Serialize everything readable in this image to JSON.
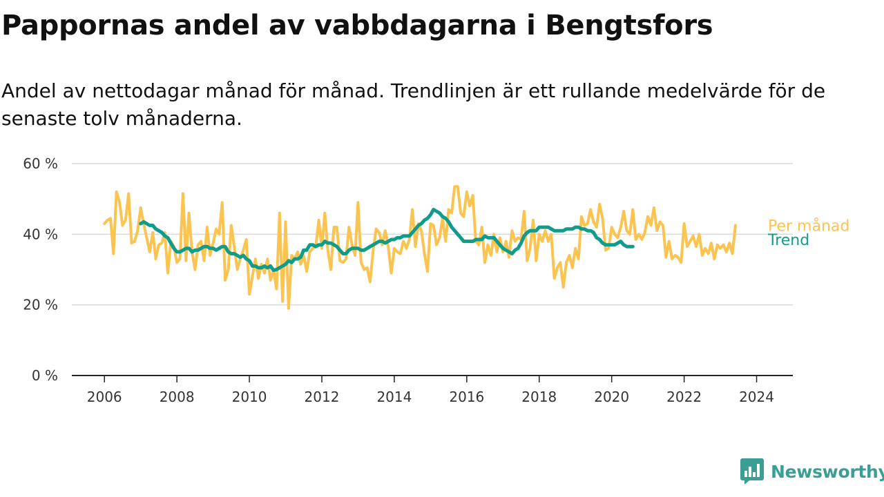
{
  "title": "Pappornas andel av vabbdagarna i Bengtsfors",
  "subtitle": "Andel av nettodagar månad för månad. Trendlinjen är ett rullande medelvärde för de senaste tolv månaderna.",
  "brand": {
    "name": "Newsworthy",
    "icon": "bar-chart-speech-bubble-icon",
    "color": "#3a9e94"
  },
  "chart_data": {
    "type": "line",
    "xlabel": "",
    "ylabel": "",
    "xlim": [
      2005.1,
      2025.0
    ],
    "ylim": [
      0,
      60
    ],
    "x_ticks": [
      2006,
      2008,
      2010,
      2012,
      2014,
      2016,
      2018,
      2020,
      2022,
      2024
    ],
    "x_tick_labels": [
      "2006",
      "2008",
      "2010",
      "2012",
      "2014",
      "2016",
      "2018",
      "2020",
      "2022",
      "2024"
    ],
    "y_ticks": [
      0,
      20,
      40,
      60
    ],
    "y_tick_labels": [
      "0 %",
      "20 %",
      "40 %",
      "60 %"
    ],
    "grid": "horizontal",
    "legend": "direct labels at right end of lines",
    "series": [
      {
        "name": "Per månad",
        "color": "#fbc34f",
        "x_start": 2006.0,
        "x_step": 0.08333,
        "values": [
          43,
          44,
          44.5,
          34.5,
          52,
          49,
          42.5,
          44,
          51.5,
          37.5,
          38,
          41,
          47.5,
          43,
          39,
          35,
          40.5,
          33,
          37,
          37.5,
          40.5,
          29,
          38,
          36.5,
          32,
          33,
          51.5,
          32.5,
          46,
          35,
          30,
          37,
          38,
          32.5,
          42,
          34,
          37.5,
          41.5,
          40,
          49,
          27,
          30,
          42.5,
          36.5,
          30,
          33,
          35.5,
          38.5,
          23,
          28,
          33,
          27.5,
          31.5,
          29,
          33,
          27,
          30,
          24.5,
          46,
          21,
          43.5,
          19,
          34,
          33,
          35,
          31.5,
          34,
          29.5,
          35,
          36,
          36.5,
          44,
          36,
          46,
          35.5,
          30,
          42,
          42,
          32.5,
          32,
          33,
          42,
          37,
          34,
          49,
          32,
          30,
          30.5,
          26.5,
          35.5,
          41.5,
          40.5,
          37,
          41,
          36.5,
          29,
          36,
          35,
          34.5,
          38,
          36,
          38.5,
          47,
          36.5,
          43,
          41,
          34.5,
          29.5,
          43,
          42.5,
          37,
          39,
          44.5,
          38,
          47,
          46,
          53.5,
          53.5,
          46,
          45,
          52,
          48,
          51,
          38,
          37,
          42,
          32,
          37,
          34,
          40,
          35,
          39,
          35,
          38,
          33.5,
          41,
          38,
          39,
          38.5,
          46.5,
          32.5,
          36,
          44,
          32.5,
          40,
          38,
          41,
          38,
          40,
          27.5,
          30.5,
          32,
          25,
          32,
          34,
          30.5,
          36,
          33,
          45,
          42.5,
          43,
          47,
          43.5,
          42,
          48.5,
          44.5,
          35.5,
          36,
          42,
          40,
          39,
          42,
          46.5,
          41,
          40,
          47,
          38.5,
          40,
          38.5,
          40.5,
          45,
          42.5,
          47.5,
          41,
          43.5,
          42.5,
          33.5,
          38,
          33,
          34,
          33.5,
          32,
          43,
          36.5,
          38,
          39.5,
          36.5,
          40,
          34,
          36,
          34.5,
          37.5,
          33,
          37,
          36,
          37,
          35,
          37.5,
          34.5,
          42.5
        ]
      },
      {
        "name": "Trend",
        "color": "#119b8a",
        "x_start": 2007.0,
        "x_step": 0.08333,
        "values": [
          43,
          43.5,
          43,
          42.5,
          42.5,
          41.5,
          41,
          40.5,
          39.5,
          39,
          37.5,
          36,
          35,
          35,
          35.5,
          36,
          36,
          35,
          35.5,
          35.5,
          36,
          36.5,
          36.5,
          36,
          36,
          35.5,
          36,
          36.5,
          36.5,
          35,
          34.5,
          34.5,
          34,
          33.5,
          34,
          33,
          32.5,
          31,
          31,
          30.5,
          30.5,
          31,
          30.5,
          31,
          29.8,
          30,
          30.5,
          31,
          31.5,
          32.5,
          32,
          33,
          33,
          33.5,
          35.5,
          35.5,
          37,
          37,
          36.5,
          37,
          37,
          38,
          37.5,
          37.5,
          37,
          36.5,
          35.5,
          34.5,
          34.5,
          35.5,
          36,
          36,
          36,
          35.5,
          35.5,
          36,
          36.5,
          37,
          37.5,
          38,
          38,
          37.5,
          38,
          38.5,
          38.5,
          39,
          39,
          39.5,
          39.5,
          39.5,
          40.5,
          41.5,
          42.5,
          43,
          44,
          44.5,
          45.5,
          47,
          46.5,
          46,
          45,
          44.5,
          43.5,
          42,
          41,
          40,
          39,
          38,
          38,
          38,
          38,
          38.5,
          38.5,
          38.5,
          39.5,
          39,
          39,
          39,
          38,
          37,
          36,
          35.5,
          35,
          34.5,
          35.5,
          36,
          37.5,
          39.5,
          40.5,
          41,
          41,
          41,
          42,
          42,
          42,
          42,
          41.5,
          41,
          41,
          41,
          41,
          41.5,
          41.5,
          41.5,
          42,
          42,
          41.5,
          41.5,
          41,
          41,
          40.5,
          39,
          38.5,
          37.5,
          37,
          37,
          37,
          37,
          37.5,
          38,
          37,
          36.5,
          36.5,
          36.5
        ]
      }
    ]
  }
}
